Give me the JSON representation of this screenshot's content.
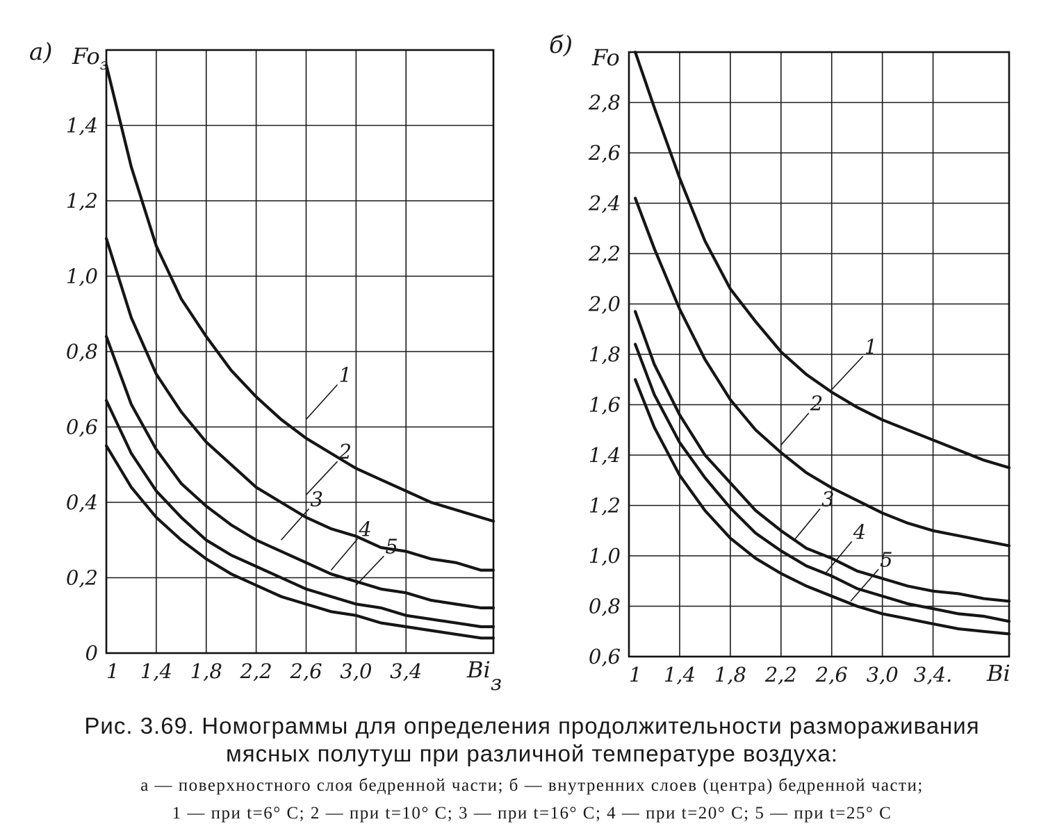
{
  "caption": {
    "title_line1": "Рис. 3.69. Номограммы для определения продолжительности размораживания",
    "title_line2": "мясных полутуш при различной температуре воздуха:",
    "legend_line1": "а — поверхностного слоя бедренной части; б — внутренних слоев (центра) бедренной части;",
    "legend_line2": "1 — при t=6° C; 2 — при t=10° C; 3 — при t=16° C; 4 — при t=20° C; 5 — при t=25° C"
  },
  "chart_data": [
    {
      "type": "line",
      "panel": "a)",
      "xlabel": "Bi",
      "xlabel_sub": "з",
      "ylabel": "Fo",
      "ylabel_sub": "з",
      "xlim": [
        1.0,
        4.1
      ],
      "ylim": [
        0.0,
        1.6
      ],
      "grid": true,
      "x_ticks": [
        1.0,
        1.4,
        1.8,
        2.2,
        2.6,
        3.0,
        3.4
      ],
      "x_tick_labels": [
        "1",
        "1,4",
        "1,8",
        "2,2",
        "2,6",
        "3,0",
        "3,4"
      ],
      "y_ticks": [
        0,
        0.2,
        0.4,
        0.6,
        0.8,
        1.0,
        1.2,
        1.4
      ],
      "y_tick_labels": [
        "0",
        "0,2",
        "0,4",
        "0,6",
        "0,8",
        "1,0",
        "1,2",
        "1,4"
      ],
      "x": [
        1.0,
        1.2,
        1.4,
        1.6,
        1.8,
        2.0,
        2.2,
        2.4,
        2.6,
        2.8,
        3.0,
        3.2,
        3.4,
        3.6,
        3.8,
        4.0,
        4.1
      ],
      "series": [
        {
          "label": "1",
          "values": [
            1.56,
            1.29,
            1.08,
            0.94,
            0.84,
            0.75,
            0.68,
            0.62,
            0.57,
            0.53,
            0.49,
            0.46,
            0.43,
            0.4,
            0.38,
            0.36,
            0.35
          ]
        },
        {
          "label": "2",
          "values": [
            1.1,
            0.89,
            0.74,
            0.64,
            0.56,
            0.5,
            0.44,
            0.4,
            0.36,
            0.33,
            0.31,
            0.28,
            0.27,
            0.25,
            0.24,
            0.22,
            0.22
          ]
        },
        {
          "label": "3",
          "values": [
            0.84,
            0.66,
            0.54,
            0.45,
            0.39,
            0.34,
            0.3,
            0.27,
            0.24,
            0.21,
            0.19,
            0.17,
            0.16,
            0.14,
            0.13,
            0.12,
            0.12
          ]
        },
        {
          "label": "4",
          "values": [
            0.67,
            0.53,
            0.43,
            0.36,
            0.3,
            0.26,
            0.23,
            0.2,
            0.17,
            0.15,
            0.13,
            0.12,
            0.1,
            0.09,
            0.08,
            0.07,
            0.07
          ]
        },
        {
          "label": "5",
          "values": [
            0.55,
            0.44,
            0.36,
            0.3,
            0.25,
            0.21,
            0.18,
            0.15,
            0.13,
            0.11,
            0.1,
            0.08,
            0.07,
            0.06,
            0.05,
            0.04,
            0.04
          ]
        }
      ]
    },
    {
      "type": "line",
      "panel": "б)",
      "xlabel": "Bi",
      "ylabel": "Fo",
      "xlim": [
        1.0,
        4.0
      ],
      "ylim": [
        0.6,
        3.0
      ],
      "grid": true,
      "x_ticks": [
        1.0,
        1.4,
        1.8,
        2.2,
        2.6,
        3.0,
        3.4
      ],
      "x_tick_labels": [
        "1",
        "1,4",
        "1,8",
        "2,2",
        "2,6",
        "3,0",
        "3,4."
      ],
      "y_ticks": [
        0.6,
        0.8,
        1.0,
        1.2,
        1.4,
        1.6,
        1.8,
        2.0,
        2.2,
        2.4,
        2.6,
        2.8
      ],
      "y_tick_labels": [
        "0,6",
        "0,8",
        "1,0",
        "1,2",
        "1,4",
        "1,6",
        "1,8",
        "2,0",
        "2,2",
        "2,4",
        "2,6",
        "2,8"
      ],
      "x": [
        1.05,
        1.2,
        1.4,
        1.6,
        1.8,
        2.0,
        2.2,
        2.4,
        2.6,
        2.8,
        3.0,
        3.2,
        3.4,
        3.6,
        3.8,
        4.0
      ],
      "series": [
        {
          "label": "1",
          "values": [
            3.0,
            2.78,
            2.5,
            2.25,
            2.06,
            1.93,
            1.81,
            1.72,
            1.65,
            1.59,
            1.54,
            1.5,
            1.46,
            1.42,
            1.38,
            1.35
          ]
        },
        {
          "label": "2",
          "values": [
            2.42,
            2.22,
            1.98,
            1.78,
            1.62,
            1.5,
            1.41,
            1.33,
            1.27,
            1.22,
            1.17,
            1.13,
            1.1,
            1.08,
            1.06,
            1.04
          ]
        },
        {
          "label": "3",
          "values": [
            1.97,
            1.76,
            1.56,
            1.4,
            1.29,
            1.18,
            1.1,
            1.03,
            0.99,
            0.94,
            0.91,
            0.88,
            0.86,
            0.85,
            0.83,
            0.82
          ]
        },
        {
          "label": "4",
          "values": [
            1.84,
            1.64,
            1.45,
            1.31,
            1.19,
            1.09,
            1.02,
            0.96,
            0.92,
            0.87,
            0.84,
            0.81,
            0.79,
            0.77,
            0.76,
            0.74
          ]
        },
        {
          "label": "5",
          "values": [
            1.7,
            1.51,
            1.32,
            1.18,
            1.07,
            0.99,
            0.93,
            0.88,
            0.84,
            0.8,
            0.77,
            0.75,
            0.73,
            0.71,
            0.7,
            0.69
          ]
        }
      ]
    }
  ]
}
